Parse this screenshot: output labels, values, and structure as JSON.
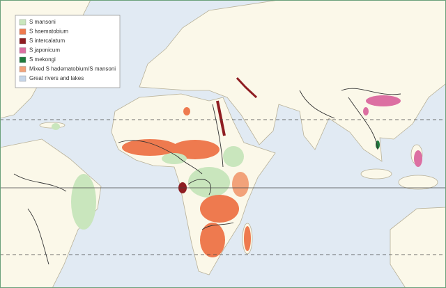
{
  "legend": {
    "items": [
      {
        "label": "S mansoni",
        "color": "#c9e6bd"
      },
      {
        "label": "S haematobium",
        "color": "#ee7a4f"
      },
      {
        "label": "S intercalatum",
        "color": "#8f1d22"
      },
      {
        "label": "S japonicum",
        "color": "#dc6fa2"
      },
      {
        "label": "S mekongi",
        "color": "#1f7a3e"
      },
      {
        "label": "Mixed S hadematobium/S mansoni",
        "color": "#f2a27a"
      },
      {
        "label": "Great rivers and lakes",
        "color": "#c6d6ea"
      }
    ]
  }
}
